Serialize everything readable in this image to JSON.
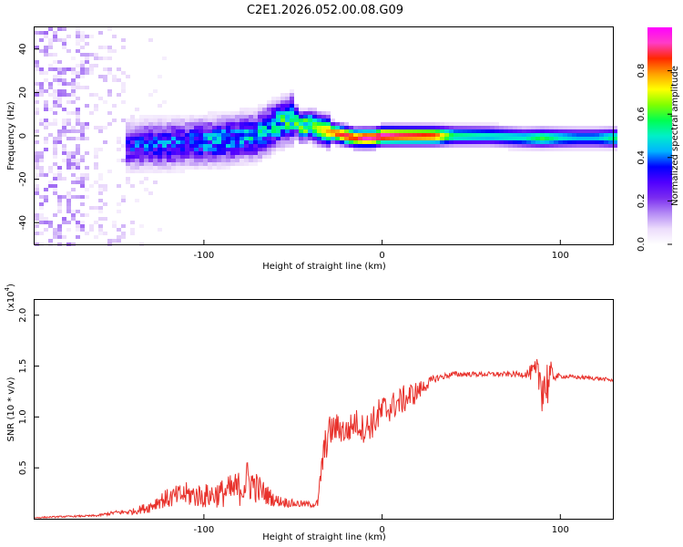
{
  "figure": {
    "title": "C2E1.2026.052.00.08.G09"
  },
  "colors": {
    "snr_line": "#e8312b",
    "background": "#ffffff",
    "colormap": [
      "#ffffff",
      "#ecdcfb",
      "#b48af5",
      "#7a2cf0",
      "#5000ff",
      "#0000ff",
      "#00b4ff",
      "#00f0c8",
      "#00ff50",
      "#80ff00",
      "#ffff00",
      "#ffa000",
      "#ff2800",
      "#ff3cc8",
      "#ff00ff"
    ]
  },
  "chart_data": [
    {
      "type": "heatmap",
      "name": "spectrogram",
      "xlabel": "Height of straight line (km)",
      "ylabel": "Frequency (Hz)",
      "xlim": [
        -195,
        130
      ],
      "ylim": [
        -50,
        50
      ],
      "xticks": [
        -100,
        0,
        100
      ],
      "yticks": [
        -40,
        -20,
        0,
        20,
        40
      ],
      "xtick_labels": [
        "-100",
        "0",
        "100"
      ],
      "ytick_labels": [
        "-40",
        "-20",
        "0",
        "20",
        "40"
      ],
      "colorbar": {
        "label": "Normalized spectral amplitude",
        "range": [
          0,
          1
        ],
        "ticks": [
          0,
          0.2,
          0.4,
          0.6,
          0.8
        ],
        "tick_labels": [
          "0.0",
          "0.2",
          "0.4",
          "0.6",
          "0.8"
        ]
      },
      "ridge": {
        "x": [
          -145,
          -130,
          -120,
          -110,
          -100,
          -90,
          -80,
          -70,
          -60,
          -50,
          -45,
          -40,
          -35,
          -30,
          -25,
          -20,
          -15,
          -10,
          -5,
          0,
          10,
          20,
          30,
          40,
          60,
          80,
          90,
          100,
          110,
          120,
          130
        ],
        "freq": [
          -5,
          -4,
          -4,
          -3,
          -3,
          -2,
          -1,
          0,
          5,
          8,
          4,
          5,
          3,
          2,
          1,
          0,
          -1,
          -1,
          -1,
          0,
          0,
          0,
          0,
          0,
          0,
          -1,
          -1,
          -1,
          -1,
          -1,
          -1
        ],
        "amplitude": [
          0.32,
          0.35,
          0.38,
          0.35,
          0.4,
          0.42,
          0.4,
          0.45,
          0.48,
          0.55,
          0.6,
          0.62,
          0.7,
          0.78,
          0.85,
          0.9,
          0.85,
          0.95,
          0.92,
          0.95,
          0.9,
          0.88,
          0.85,
          0.55,
          0.5,
          0.5,
          0.6,
          0.5,
          0.45,
          0.45,
          0.55
        ]
      }
    },
    {
      "type": "line",
      "name": "snr",
      "xlabel": "Height of straight line (km)",
      "ylabel": "SNR (10 * v/v)",
      "y_multiplier": "(x10",
      "y_multiplier_exp": "4",
      "y_multiplier_close": ")",
      "xlim": [
        -195,
        130
      ],
      "ylim": [
        0,
        2.15
      ],
      "xticks": [
        -100,
        0,
        100
      ],
      "yticks": [
        0.5,
        1.0,
        1.5,
        2.0
      ],
      "xtick_labels": [
        "-100",
        "0",
        "100"
      ],
      "ytick_labels": [
        "0.5",
        "1.0",
        "1.5",
        "2.0"
      ],
      "series": [
        {
          "name": "SNR",
          "x": [
            -195,
            -180,
            -160,
            -150,
            -140,
            -130,
            -125,
            -120,
            -110,
            -100,
            -90,
            -80,
            -75,
            -70,
            -60,
            -50,
            -40,
            -36,
            -34,
            -32,
            -30,
            -25,
            -20,
            -15,
            -10,
            -5,
            0,
            5,
            10,
            15,
            20,
            25,
            30,
            35,
            40,
            50,
            60,
            70,
            80,
            85,
            88,
            90,
            92,
            94,
            96,
            100,
            110,
            120,
            130
          ],
          "values": [
            0.01,
            0.02,
            0.03,
            0.06,
            0.07,
            0.12,
            0.18,
            0.2,
            0.24,
            0.22,
            0.25,
            0.3,
            0.38,
            0.3,
            0.18,
            0.15,
            0.14,
            0.15,
            0.5,
            0.7,
            0.85,
            0.9,
            0.85,
            0.95,
            0.88,
            0.95,
            1.05,
            1.1,
            1.15,
            1.2,
            1.25,
            1.32,
            1.38,
            1.4,
            1.42,
            1.42,
            1.42,
            1.42,
            1.42,
            1.44,
            1.4,
            1.35,
            1.3,
            1.4,
            1.4,
            1.4,
            1.39,
            1.38,
            1.36
          ],
          "noise": [
            0.006,
            0.008,
            0.01,
            0.02,
            0.03,
            0.06,
            0.08,
            0.1,
            0.12,
            0.12,
            0.14,
            0.18,
            0.22,
            0.15,
            0.06,
            0.04,
            0.03,
            0.04,
            0.15,
            0.18,
            0.16,
            0.14,
            0.14,
            0.14,
            0.14,
            0.16,
            0.18,
            0.14,
            0.14,
            0.14,
            0.1,
            0.06,
            0.04,
            0.03,
            0.03,
            0.025,
            0.025,
            0.025,
            0.03,
            0.1,
            0.2,
            0.32,
            0.3,
            0.2,
            0.05,
            0.02,
            0.02,
            0.02,
            0.02
          ]
        }
      ]
    }
  ]
}
